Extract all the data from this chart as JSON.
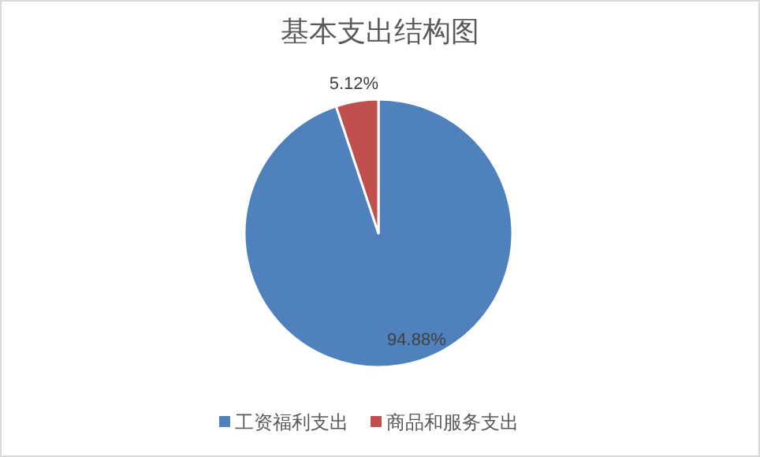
{
  "chart_data": {
    "type": "pie",
    "title": "基本支出结构图",
    "categories": [
      "工资福利支出",
      "商品和服务支出"
    ],
    "values": [
      94.88,
      5.12
    ],
    "value_labels": [
      "94.88%",
      "5.12%"
    ],
    "colors": [
      "#4f81bd",
      "#c0504d"
    ],
    "legend": "bottom"
  }
}
